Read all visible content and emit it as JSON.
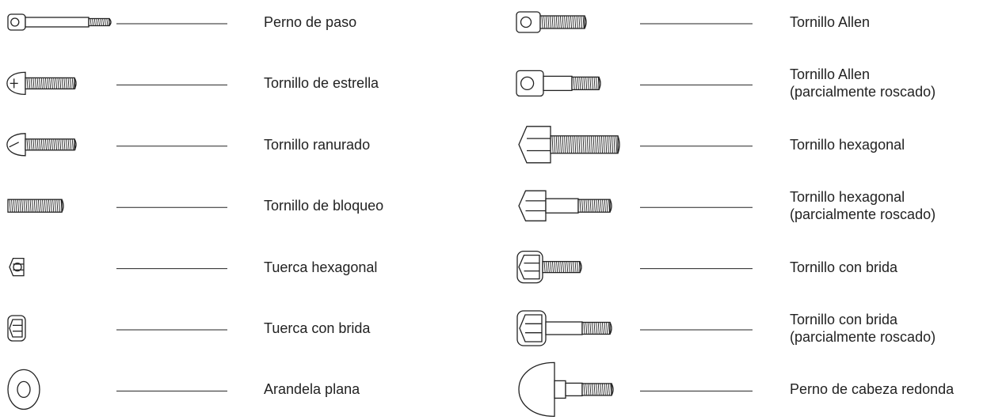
{
  "left": [
    {
      "lines": [
        "Perno de paso"
      ]
    },
    {
      "lines": [
        "Tornillo de estrella"
      ]
    },
    {
      "lines": [
        "Tornillo ranurado"
      ]
    },
    {
      "lines": [
        "Tornillo de bloqueo"
      ]
    },
    {
      "lines": [
        "Tuerca hexagonal"
      ]
    },
    {
      "lines": [
        "Tuerca con brida"
      ]
    },
    {
      "lines": [
        "Arandela plana"
      ]
    }
  ],
  "right": [
    {
      "lines": [
        "Tornillo Allen"
      ]
    },
    {
      "lines": [
        "Tornillo Allen",
        "(parcialmente roscado)"
      ]
    },
    {
      "lines": [
        "Tornillo hexagonal"
      ]
    },
    {
      "lines": [
        "Tornillo hexagonal",
        "(parcialmente roscado)"
      ]
    },
    {
      "lines": [
        "Tornillo con brida"
      ]
    },
    {
      "lines": [
        "Tornillo con brida",
        "(parcialmente roscado)"
      ]
    },
    {
      "lines": [
        "Perno de cabeza redonda"
      ]
    }
  ]
}
